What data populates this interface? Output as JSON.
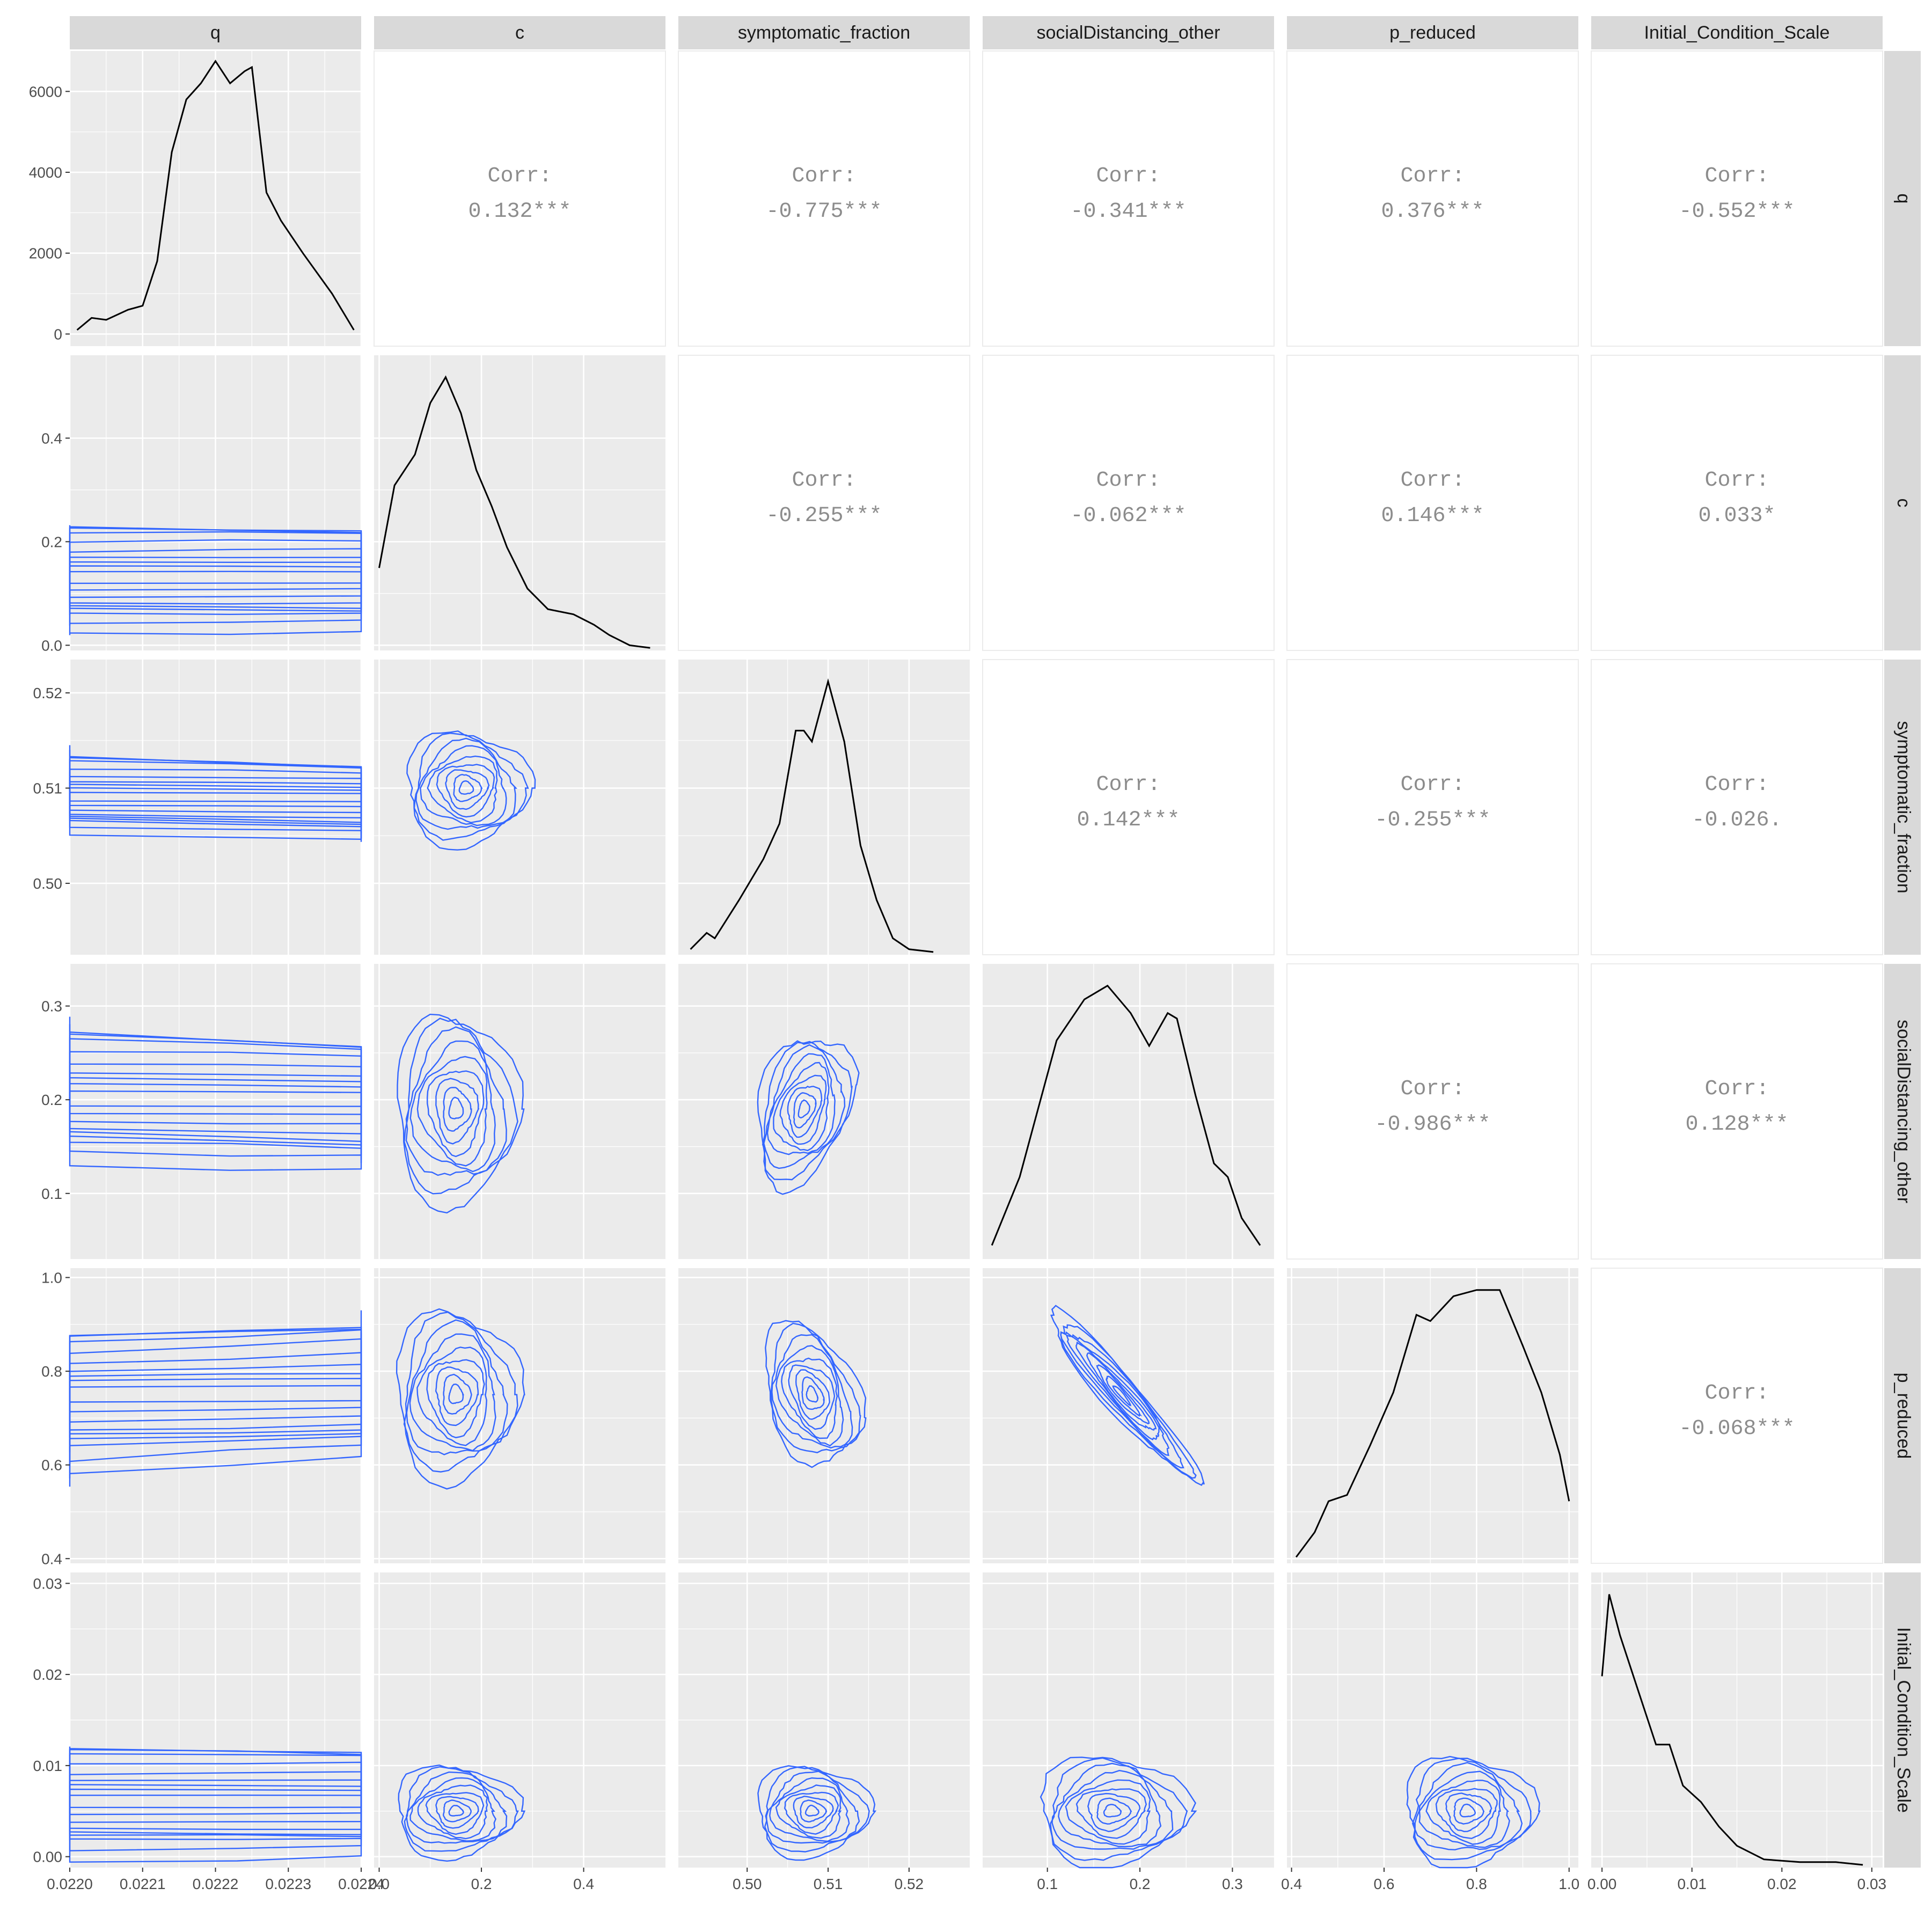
{
  "chart_data": {
    "type": "scatterplot-matrix",
    "variables": [
      "q",
      "c",
      "symptomatic_fraction",
      "socialDistancing_other",
      "p_reduced",
      "Initial_Condition_Scale"
    ],
    "axes": {
      "q": {
        "range": [
          0.022,
          0.0224
        ],
        "ticks": [
          0.022,
          0.0221,
          0.0222,
          0.0223,
          0.0224
        ],
        "tick_labels": [
          "0.0220",
          "0.0221",
          "0.0222",
          "0.0223",
          "0.0224"
        ]
      },
      "c": {
        "range": [
          -0.01,
          0.56
        ],
        "ticks": [
          0.0,
          0.2,
          0.4
        ],
        "tick_labels": [
          "0.0",
          "0.2",
          "0.4"
        ]
      },
      "symptomatic_fraction": {
        "range": [
          0.4915,
          0.5275
        ],
        "ticks": [
          0.5,
          0.51,
          0.52
        ],
        "tick_labels": [
          "0.50",
          "0.51",
          "0.52"
        ]
      },
      "socialDistancing_other": {
        "range": [
          0.03,
          0.345
        ],
        "ticks": [
          0.1,
          0.2,
          0.3
        ],
        "tick_labels": [
          "0.1",
          "0.2",
          "0.3"
        ]
      },
      "p_reduced": {
        "range": [
          0.39,
          1.02
        ],
        "ticks": [
          0.4,
          0.6,
          0.8,
          1.0
        ],
        "tick_labels": [
          "0.4",
          "0.6",
          "0.8",
          "1.0"
        ]
      },
      "Initial_Condition_Scale": {
        "range": [
          -0.0012,
          0.0312
        ],
        "ticks": [
          0.0,
          0.01,
          0.02,
          0.03
        ],
        "tick_labels": [
          "0.00",
          "0.01",
          "0.02",
          "0.03"
        ]
      }
    },
    "density_axis_q": {
      "range": [
        -300,
        7000
      ],
      "ticks": [
        0,
        2000,
        4000,
        6000
      ],
      "tick_labels": [
        "0",
        "2000",
        "4000",
        "6000"
      ]
    },
    "y_override": {
      "symptomatic_fraction": {
        "range": [
          0.4925,
          0.5235
        ],
        "ticks": [
          0.5,
          0.51,
          0.52
        ],
        "tick_labels": [
          "0.50",
          "0.51",
          "0.52"
        ]
      }
    },
    "densities": {
      "q": [
        [
          0.02201,
          100
        ],
        [
          0.02203,
          400
        ],
        [
          0.02205,
          350
        ],
        [
          0.02208,
          600
        ],
        [
          0.0221,
          700
        ],
        [
          0.02212,
          1800
        ],
        [
          0.02214,
          4500
        ],
        [
          0.02216,
          5800
        ],
        [
          0.02218,
          6200
        ],
        [
          0.0222,
          6750
        ],
        [
          0.02222,
          6200
        ],
        [
          0.02224,
          6500
        ],
        [
          0.02225,
          6600
        ],
        [
          0.02227,
          3500
        ],
        [
          0.02229,
          2800
        ],
        [
          0.02232,
          2000
        ],
        [
          0.02236,
          1000
        ],
        [
          0.02239,
          100
        ]
      ],
      "c": [
        [
          0.0,
          0.16
        ],
        [
          0.03,
          0.32
        ],
        [
          0.07,
          0.38
        ],
        [
          0.1,
          0.48
        ],
        [
          0.13,
          0.53
        ],
        [
          0.16,
          0.46
        ],
        [
          0.19,
          0.35
        ],
        [
          0.22,
          0.28
        ],
        [
          0.25,
          0.2
        ],
        [
          0.29,
          0.12
        ],
        [
          0.33,
          0.08
        ],
        [
          0.38,
          0.07
        ],
        [
          0.42,
          0.05
        ],
        [
          0.45,
          0.03
        ],
        [
          0.49,
          0.01
        ],
        [
          0.53,
          0.005
        ]
      ],
      "symptomatic_fraction": [
        [
          0.493,
          0.02
        ],
        [
          0.495,
          0.08
        ],
        [
          0.496,
          0.06
        ],
        [
          0.499,
          0.2
        ],
        [
          0.502,
          0.35
        ],
        [
          0.504,
          0.48
        ],
        [
          0.506,
          0.82
        ],
        [
          0.507,
          0.82
        ],
        [
          0.508,
          0.78
        ],
        [
          0.51,
          1.0
        ],
        [
          0.512,
          0.78
        ],
        [
          0.514,
          0.4
        ],
        [
          0.516,
          0.2
        ],
        [
          0.518,
          0.06
        ],
        [
          0.52,
          0.02
        ],
        [
          0.523,
          0.01
        ]
      ],
      "socialDistancing_other": [
        [
          0.04,
          0.05
        ],
        [
          0.07,
          0.3
        ],
        [
          0.09,
          0.55
        ],
        [
          0.11,
          0.8
        ],
        [
          0.14,
          0.95
        ],
        [
          0.165,
          1.0
        ],
        [
          0.19,
          0.9
        ],
        [
          0.21,
          0.78
        ],
        [
          0.23,
          0.9
        ],
        [
          0.24,
          0.88
        ],
        [
          0.26,
          0.6
        ],
        [
          0.28,
          0.35
        ],
        [
          0.295,
          0.3
        ],
        [
          0.31,
          0.15
        ],
        [
          0.33,
          0.05
        ]
      ],
      "p_reduced": [
        [
          0.41,
          0.02
        ],
        [
          0.45,
          0.1
        ],
        [
          0.48,
          0.2
        ],
        [
          0.52,
          0.22
        ],
        [
          0.57,
          0.38
        ],
        [
          0.62,
          0.55
        ],
        [
          0.67,
          0.8
        ],
        [
          0.7,
          0.78
        ],
        [
          0.75,
          0.86
        ],
        [
          0.8,
          0.88
        ],
        [
          0.85,
          0.88
        ],
        [
          0.9,
          0.7
        ],
        [
          0.94,
          0.55
        ],
        [
          0.98,
          0.35
        ],
        [
          1.0,
          0.2
        ]
      ],
      "Initial_Condition_Scale": [
        [
          0.0,
          0.7
        ],
        [
          0.0008,
          1.0
        ],
        [
          0.002,
          0.85
        ],
        [
          0.004,
          0.65
        ],
        [
          0.006,
          0.45
        ],
        [
          0.0075,
          0.45
        ],
        [
          0.009,
          0.3
        ],
        [
          0.011,
          0.24
        ],
        [
          0.013,
          0.15
        ],
        [
          0.015,
          0.08
        ],
        [
          0.018,
          0.03
        ],
        [
          0.022,
          0.02
        ],
        [
          0.026,
          0.02
        ],
        [
          0.029,
          0.01
        ]
      ]
    },
    "correlations": [
      {
        "row": "q",
        "col": "c",
        "label": "Corr:",
        "value": "0.132***"
      },
      {
        "row": "q",
        "col": "symptomatic_fraction",
        "label": "Corr:",
        "value": "-0.775***"
      },
      {
        "row": "q",
        "col": "socialDistancing_other",
        "label": "Corr:",
        "value": "-0.341***"
      },
      {
        "row": "q",
        "col": "p_reduced",
        "label": "Corr:",
        "value": "0.376***"
      },
      {
        "row": "q",
        "col": "Initial_Condition_Scale",
        "label": "Corr:",
        "value": "-0.552***"
      },
      {
        "row": "c",
        "col": "symptomatic_fraction",
        "label": "Corr:",
        "value": "-0.255***"
      },
      {
        "row": "c",
        "col": "socialDistancing_other",
        "label": "Corr:",
        "value": "-0.062***"
      },
      {
        "row": "c",
        "col": "p_reduced",
        "label": "Corr:",
        "value": "0.146***"
      },
      {
        "row": "c",
        "col": "Initial_Condition_Scale",
        "label": "Corr:",
        "value": "0.033*"
      },
      {
        "row": "symptomatic_fraction",
        "col": "socialDistancing_other",
        "label": "Corr:",
        "value": "0.142***"
      },
      {
        "row": "symptomatic_fraction",
        "col": "p_reduced",
        "label": "Corr:",
        "value": "-0.255***"
      },
      {
        "row": "symptomatic_fraction",
        "col": "Initial_Condition_Scale",
        "label": "Corr:",
        "value": "-0.026."
      },
      {
        "row": "socialDistancing_other",
        "col": "p_reduced",
        "label": "Corr:",
        "value": "-0.986***"
      },
      {
        "row": "socialDistancing_other",
        "col": "Initial_Condition_Scale",
        "label": "Corr:",
        "value": "0.128***"
      },
      {
        "row": "p_reduced",
        "col": "Initial_Condition_Scale",
        "label": "Corr:",
        "value": "-0.068***"
      }
    ],
    "contour_blobs": [
      {
        "row": "c",
        "col": "q",
        "blobs": [
          [
            0.02222,
            0.13,
            0.05,
            0.1,
            0
          ]
        ]
      },
      {
        "row": "symptomatic_fraction",
        "col": "q",
        "blobs": [
          [
            0.02222,
            0.509,
            0.04,
            0.005,
            -0.6
          ]
        ]
      },
      {
        "row": "socialDistancing_other",
        "col": "q",
        "blobs": [
          [
            0.02222,
            0.2,
            0.05,
            0.08,
            -0.5
          ]
        ]
      },
      {
        "row": "p_reduced",
        "col": "q",
        "blobs": [
          [
            0.02222,
            0.75,
            0.05,
            0.18,
            0.6
          ]
        ]
      },
      {
        "row": "Initial_Condition_Scale",
        "col": "q",
        "blobs": [
          [
            0.02223,
            0.006,
            0.04,
            0.006,
            0
          ]
        ]
      },
      {
        "row": "symptomatic_fraction",
        "col": "c",
        "blobs": [
          [
            0.17,
            0.51,
            0.12,
            0.006,
            0
          ]
        ]
      },
      {
        "row": "socialDistancing_other",
        "col": "c",
        "blobs": [
          [
            0.15,
            0.19,
            0.12,
            0.1,
            0
          ]
        ]
      },
      {
        "row": "p_reduced",
        "col": "c",
        "blobs": [
          [
            0.15,
            0.75,
            0.12,
            0.18,
            0
          ]
        ]
      },
      {
        "row": "Initial_Condition_Scale",
        "col": "c",
        "blobs": [
          [
            0.15,
            0.005,
            0.12,
            0.005,
            0
          ]
        ]
      },
      {
        "row": "socialDistancing_other",
        "col": "symptomatic_fraction",
        "blobs": [
          [
            0.507,
            0.19,
            0.006,
            0.08,
            0.3
          ]
        ]
      },
      {
        "row": "p_reduced",
        "col": "symptomatic_fraction",
        "blobs": [
          [
            0.508,
            0.75,
            0.006,
            0.15,
            -0.3
          ]
        ]
      },
      {
        "row": "Initial_Condition_Scale",
        "col": "symptomatic_fraction",
        "blobs": [
          [
            0.508,
            0.005,
            0.007,
            0.005,
            0
          ]
        ]
      },
      {
        "row": "p_reduced",
        "col": "socialDistancing_other",
        "blobs": [
          [
            0.18,
            0.75,
            0.08,
            0.18,
            -0.95
          ]
        ]
      },
      {
        "row": "Initial_Condition_Scale",
        "col": "socialDistancing_other",
        "blobs": [
          [
            0.17,
            0.005,
            0.08,
            0.006,
            0
          ]
        ]
      },
      {
        "row": "Initial_Condition_Scale",
        "col": "p_reduced",
        "blobs": [
          [
            0.78,
            0.005,
            0.14,
            0.006,
            0
          ]
        ]
      }
    ],
    "colors": {
      "contour": "#3366FF",
      "density": "#000000",
      "panel_bg": "#EBEBEB",
      "strip_bg": "#D9D9D9",
      "grid": "#FFFFFF",
      "corr_text": "#8C8C8C"
    },
    "grid": true
  }
}
